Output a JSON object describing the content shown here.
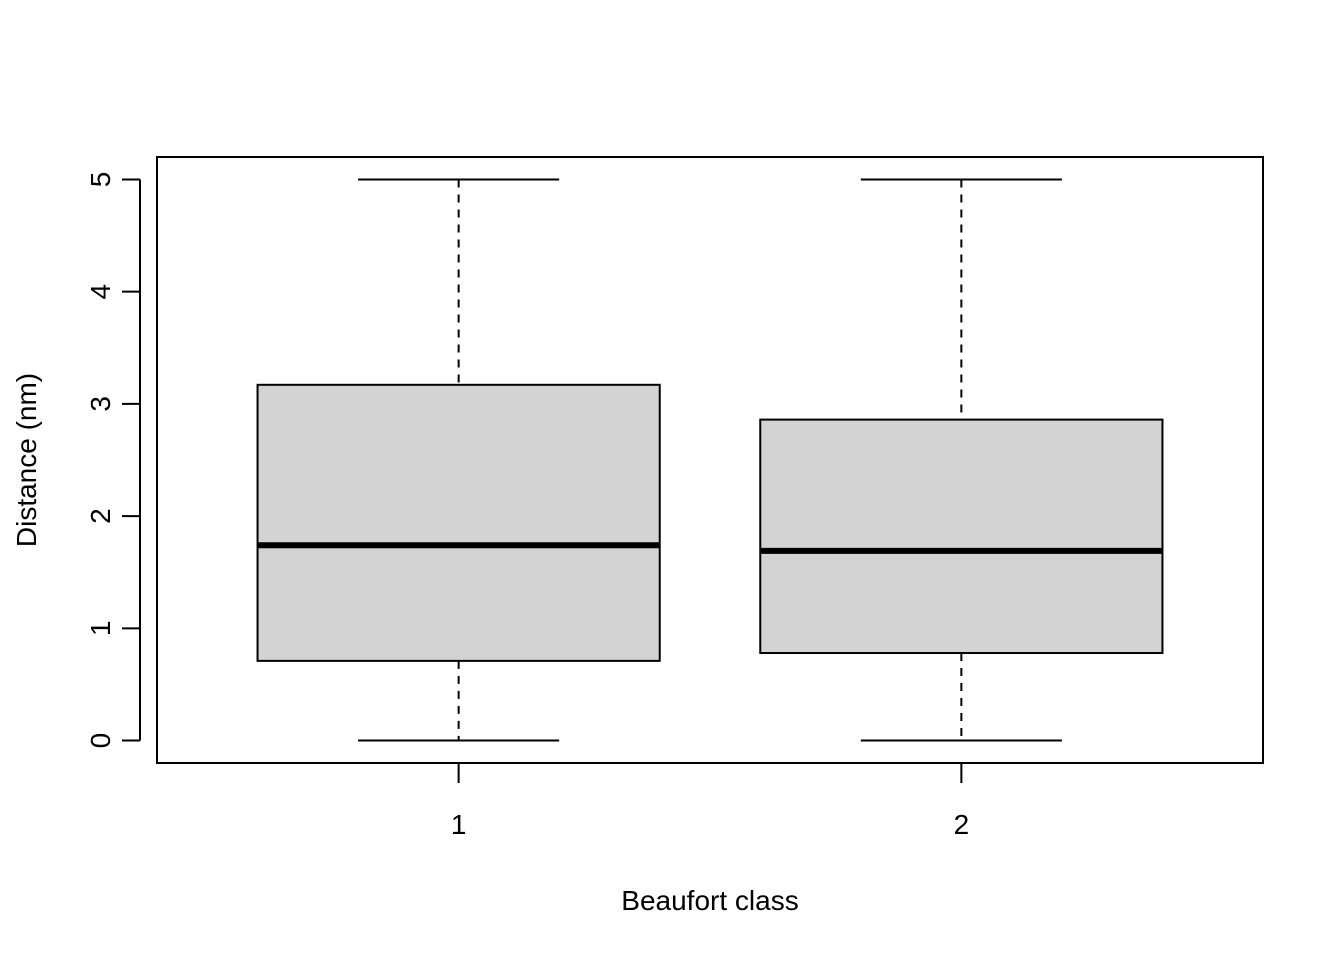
{
  "chart_data": {
    "type": "boxplot",
    "title": "",
    "xlabel": "Beaufort class",
    "ylabel": "Distance (nm)",
    "ylim": [
      -0.2,
      5.2
    ],
    "yticks": [
      0,
      1,
      2,
      3,
      4,
      5
    ],
    "grid": false,
    "legend": "none",
    "box_fill": "#d3d3d3",
    "categories": [
      "1",
      "2"
    ],
    "boxes": [
      {
        "category": "1",
        "whisker_low": 0,
        "q1": 0.71,
        "median": 1.74,
        "q3": 3.17,
        "whisker_high": 5
      },
      {
        "category": "2",
        "whisker_low": 0,
        "q1": 0.78,
        "median": 1.69,
        "q3": 2.86,
        "whisker_high": 5
      }
    ]
  }
}
